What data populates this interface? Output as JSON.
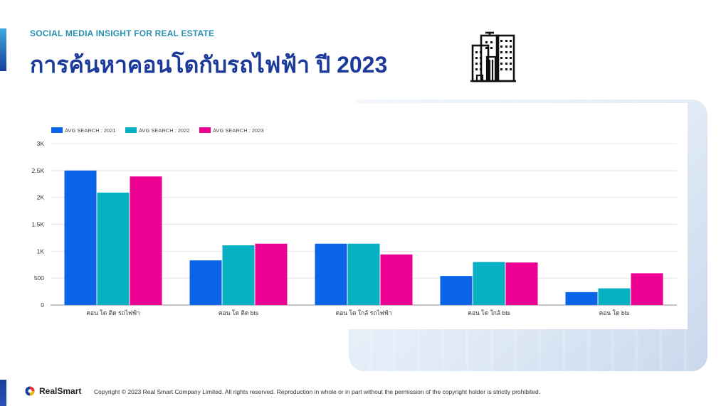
{
  "header": {
    "subtitle": "SOCIAL MEDIA INSIGHT FOR REAL ESTATE",
    "title": "การค้นหาคอนโดกับรถไฟฟ้า ปี 2023"
  },
  "footer": {
    "brand": "RealSmart",
    "copyright": "Copyright © 2023 Real Smart Company Limited. All rights reserved. Reproduction in whole  or in part without the permission of the copyright holder is strictly prohibited."
  },
  "chart_data": {
    "type": "bar",
    "categories": [
      "คอน โด ติด รถไฟฟ้า",
      "คอน โด ติด bts",
      "คอน โด ใกล้ รถไฟฟ้า",
      "คอน โด ใกล้ bts",
      "คอน โด bts"
    ],
    "series": [
      {
        "name": "AVG SEARCH : 2021",
        "color": "#0a64e8",
        "values": [
          2500,
          830,
          1140,
          540,
          240
        ]
      },
      {
        "name": "AVG SEARCH : 2022",
        "color": "#06afc2",
        "values": [
          2090,
          1110,
          1140,
          800,
          310
        ]
      },
      {
        "name": "AVG SEARCH : 2023",
        "color": "#ec0091",
        "values": [
          2390,
          1140,
          940,
          790,
          590
        ]
      }
    ],
    "yticks": [
      {
        "value": 0,
        "label": "0"
      },
      {
        "value": 500,
        "label": "500"
      },
      {
        "value": 1000,
        "label": "1K"
      },
      {
        "value": 1500,
        "label": "1.5K"
      },
      {
        "value": 2000,
        "label": "2K"
      },
      {
        "value": 2500,
        "label": "2.5K"
      },
      {
        "value": 3000,
        "label": "3K"
      }
    ],
    "ylim": [
      0,
      3000
    ],
    "title": "",
    "xlabel": "",
    "ylabel": "",
    "legend": "top-left",
    "grid": true
  }
}
